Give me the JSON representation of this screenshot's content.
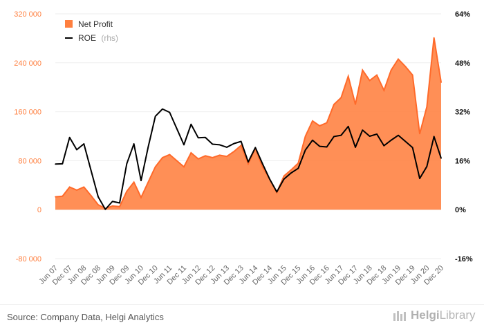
{
  "chart_data": {
    "type": "area+line",
    "series": [
      {
        "name": "Net Profit",
        "kind": "area",
        "axis": "left",
        "color": "#ff7f3f",
        "values": [
          21000,
          22000,
          37000,
          32000,
          37000,
          23000,
          8000,
          2000,
          6000,
          5000,
          30000,
          45000,
          20000,
          45000,
          70000,
          85000,
          90000,
          80000,
          70000,
          93000,
          83000,
          88000,
          85000,
          89000,
          87000,
          95000,
          105000,
          75000,
          100000,
          70000,
          50000,
          28000,
          55000,
          65000,
          76000,
          120000,
          145000,
          137000,
          142000,
          172000,
          183000,
          218000,
          172000,
          228000,
          211000,
          220000,
          195000,
          228000,
          246000,
          234000,
          220000,
          124000,
          168000,
          281000,
          208000
        ]
      },
      {
        "name": "ROE",
        "name_suffix": "(rhs)",
        "kind": "line",
        "axis": "right",
        "color": "#000000",
        "values": [
          14.9,
          15.0,
          23.6,
          19.6,
          21.5,
          12.8,
          4.2,
          0.1,
          2.7,
          2.2,
          15.0,
          21.5,
          9.5,
          20.5,
          30.5,
          32.9,
          31.8,
          26.5,
          21.2,
          27.9,
          23.5,
          23.6,
          21.4,
          21.2,
          20.4,
          21.6,
          22.3,
          15.6,
          20.3,
          15.0,
          10.0,
          5.8,
          10.0,
          12.0,
          13.5,
          19.5,
          22.7,
          20.7,
          20.5,
          23.9,
          24.3,
          27.2,
          20.4,
          26.0,
          24.0,
          24.7,
          20.9,
          22.7,
          24.3,
          22.3,
          20.3,
          10.2,
          14.1,
          23.9,
          16.8
        ]
      }
    ],
    "x_tick_labels": [
      "Jun 07",
      "Dec 07",
      "Jun 08",
      "Dec 08",
      "Jun 09",
      "Dec 09",
      "Jun 10",
      "Dec 10",
      "Jun 11",
      "Dec 11",
      "Jun 12",
      "Dec 12",
      "Jun 13",
      "Dec 13",
      "Jun 14",
      "Dec 14",
      "Jun 15",
      "Dec 15",
      "Jun 16",
      "Dec 16",
      "Jun 17",
      "Dec 17",
      "Jun 18",
      "Dec 18",
      "Jun 19",
      "Dec 19",
      "Jun 20",
      "Dec 20"
    ],
    "y_left": {
      "min": -80000,
      "max": 320000,
      "ticks": [
        -80000,
        0,
        80000,
        160000,
        240000,
        320000
      ],
      "tick_labels": [
        "-80 000",
        "0",
        "80 000",
        "160 000",
        "240 000",
        "320 000"
      ],
      "color": "#ff7f3f"
    },
    "y_right": {
      "min": -16,
      "max": 64,
      "ticks": [
        -16,
        0,
        16,
        32,
        48,
        64
      ],
      "tick_labels": [
        "-16%",
        "0%",
        "16%",
        "32%",
        "48%",
        "64%"
      ],
      "color": "#000000"
    },
    "legend_position": "top-left",
    "grid": true
  },
  "footer": {
    "source": "Source: Company Data, Helgi Analytics",
    "brand_name": "Helgi",
    "brand_suffix": "Library"
  }
}
